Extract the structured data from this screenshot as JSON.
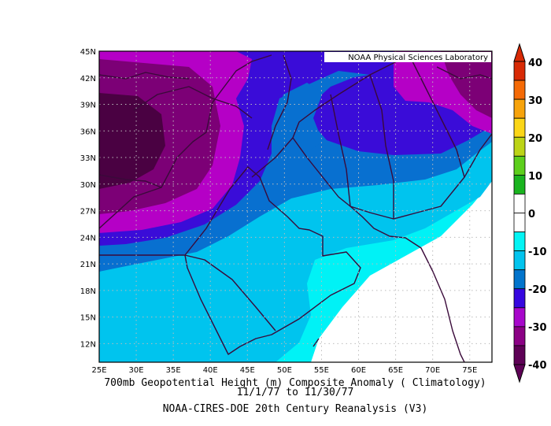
{
  "credit": "NOAA Physical Sciences Laboratory",
  "caption": {
    "title": "700mb Geopotential Height (m) Composite Anomaly ( Climatology)",
    "dates": "11/1/77  to 11/30/77",
    "source": "NOAA-CIRES-DOE 20th Century Reanalysis (V3)"
  },
  "map": {
    "lon_labels": [
      "25E",
      "30E",
      "35E",
      "40E",
      "45E",
      "50E",
      "55E",
      "60E",
      "65E",
      "70E",
      "75E"
    ],
    "lat_labels": [
      "45N",
      "42N",
      "39N",
      "36N",
      "33N",
      "30N",
      "27N",
      "24N",
      "21N",
      "18N",
      "15N",
      "12N"
    ]
  },
  "colorbar": {
    "labels": [
      "40",
      "30",
      "20",
      "10",
      "0",
      "-10",
      "-20",
      "-30",
      "-40"
    ],
    "colors": [
      "#d82a05",
      "#f56a05",
      "#f7a30b",
      "#fbd617",
      "#bcd416",
      "#5dcf1c",
      "#1ab41f",
      "#ffffff",
      "#ffffff",
      "#04f4f4",
      "#02c4ee",
      "#0274cc",
      "#3607e0",
      "#a707cb",
      "#8b0185",
      "#5e0156"
    ]
  },
  "fill_colors": {
    "darkest": "#4a0142",
    "deep": "#7c0076",
    "magenta": "#b500c6",
    "violet": "#3a0cd8",
    "blue": "#0870d0",
    "sky": "#00c4ee",
    "cyan": "#00f2f6",
    "white": "#ffffff"
  }
}
